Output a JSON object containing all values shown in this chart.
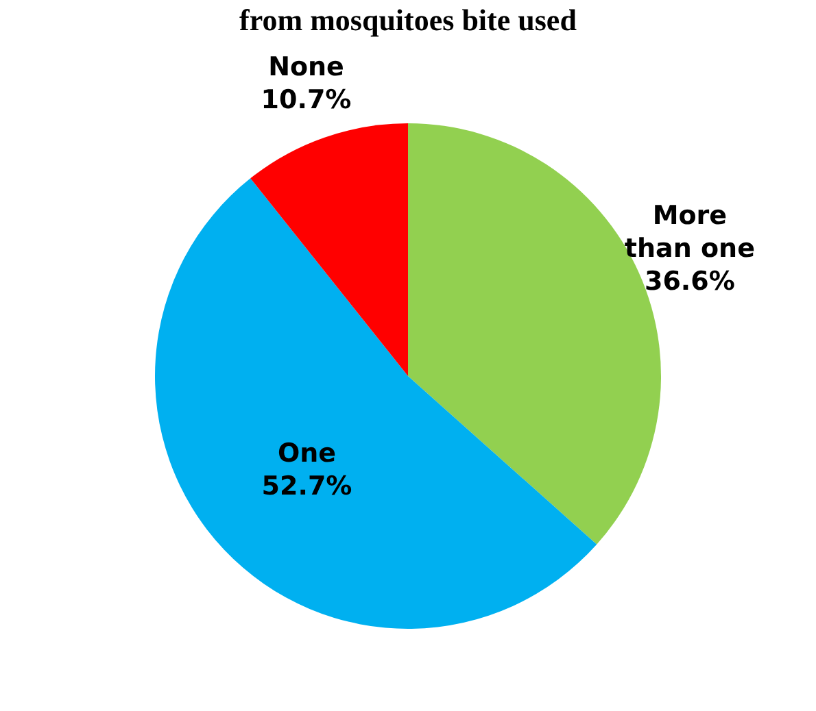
{
  "chart_data": {
    "type": "pie",
    "title": "from mosquitoes bite used",
    "categories": [
      "More than one",
      "One",
      "None"
    ],
    "values": [
      36.6,
      52.7,
      10.7
    ],
    "colors": [
      "#92d050",
      "#00b0f0",
      "#ff0000"
    ],
    "value_labels": [
      "36.6%",
      "52.7%",
      "10.7%"
    ],
    "legend": false
  }
}
